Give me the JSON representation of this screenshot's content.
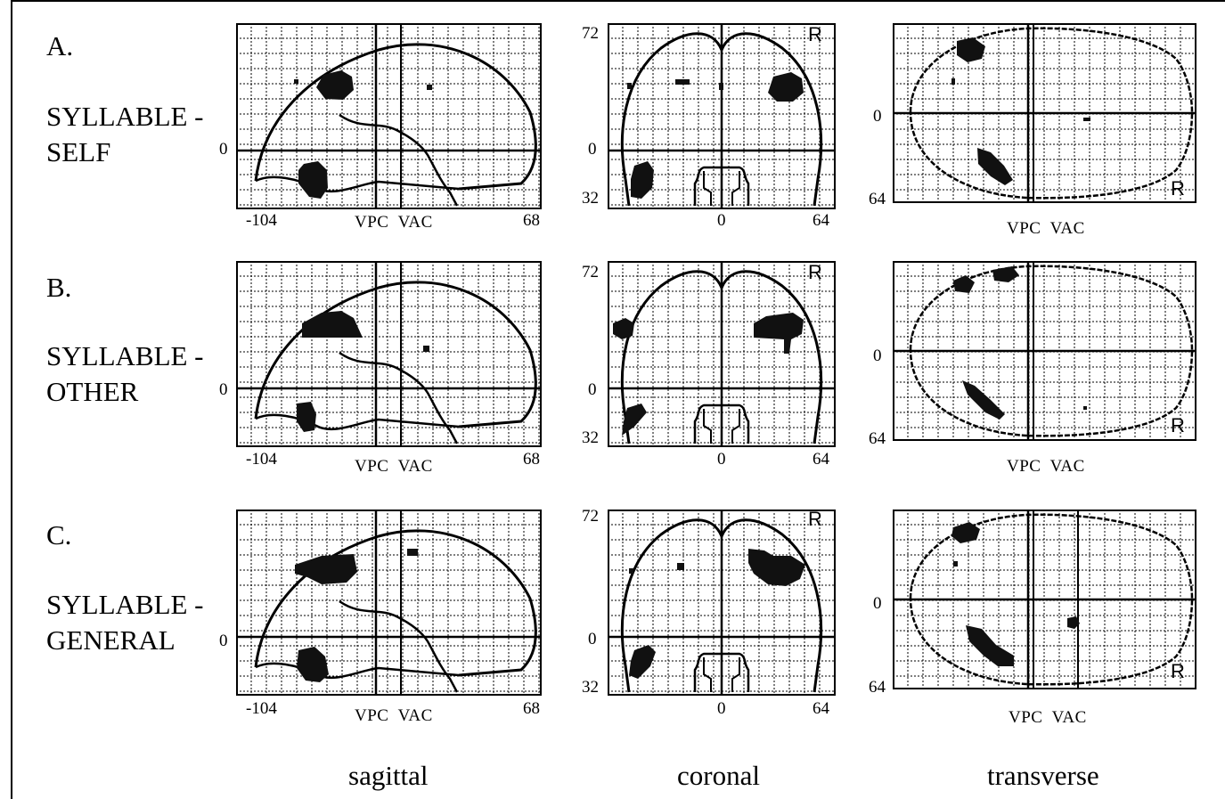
{
  "rows": [
    {
      "letter": "A.",
      "line1": "SYLLABLE -",
      "line2": "SELF",
      "sagittal": {
        "zero": "0",
        "left": "-104",
        "mid": "VPC  VAC",
        "right": "68"
      },
      "coronal": {
        "top": "72",
        "zero": "0",
        "bottom": "32",
        "xzero": "0",
        "xright": "64",
        "r_mark": "R"
      },
      "transverse": {
        "zero": "0",
        "bottom": "64",
        "mid": "VPC  VAC",
        "r_mark": "R"
      }
    },
    {
      "letter": "B.",
      "line1": "SYLLABLE -",
      "line2": "OTHER",
      "sagittal": {
        "zero": "0",
        "left": "-104",
        "mid": "VPC  VAC",
        "right": "68"
      },
      "coronal": {
        "top": "72",
        "zero": "0",
        "bottom": "32",
        "xzero": "0",
        "xright": "64",
        "r_mark": "R"
      },
      "transverse": {
        "zero": "0",
        "bottom": "64",
        "mid": "VPC  VAC",
        "r_mark": "R"
      }
    },
    {
      "letter": "C.",
      "line1": "SYLLABLE -",
      "line2": "GENERAL",
      "sagittal": {
        "zero": "0",
        "left": "-104",
        "mid": "VPC  VAC",
        "right": "68"
      },
      "coronal": {
        "top": "72",
        "zero": "0",
        "bottom": "32",
        "xzero": "0",
        "xright": "64",
        "r_mark": "R"
      },
      "transverse": {
        "zero": "0",
        "bottom": "64",
        "mid": "VPC  VAC",
        "r_mark": "R"
      }
    }
  ],
  "views": {
    "sagittal": "sagittal",
    "coronal": "coronal",
    "transverse": "transverse"
  },
  "colors": {
    "ink": "#000000",
    "background": "#ffffff",
    "grid_dash": "#000000"
  }
}
